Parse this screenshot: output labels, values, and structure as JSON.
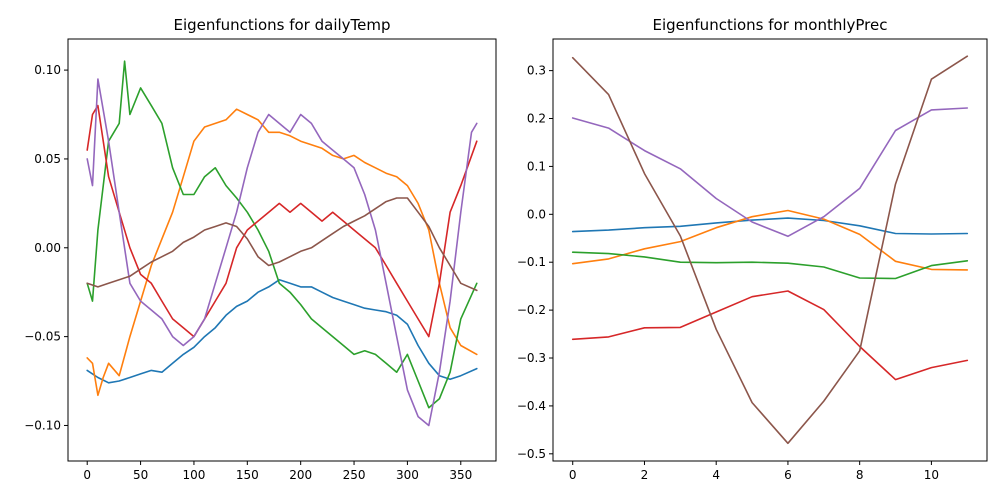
{
  "chart_data": [
    {
      "type": "line",
      "title": "Eigenfunctions for dailyTemp",
      "xlabel": "",
      "ylabel": "",
      "xlim": [
        -18,
        383
      ],
      "ylim": [
        -0.12,
        0.1175
      ],
      "x_ticks": [
        0,
        50,
        100,
        150,
        200,
        250,
        300,
        350
      ],
      "x_tick_labels": [
        "0",
        "50",
        "100",
        "150",
        "200",
        "250",
        "300",
        "350"
      ],
      "y_ticks": [
        -0.1,
        -0.05,
        0.0,
        0.05,
        0.1
      ],
      "y_tick_labels": [
        "−0.10",
        "−0.05",
        "0.00",
        "0.05",
        "0.10"
      ],
      "grid": false,
      "series": [
        {
          "color": "#1f77b4",
          "x": [
            0,
            10,
            20,
            30,
            40,
            50,
            60,
            70,
            80,
            90,
            100,
            110,
            120,
            130,
            140,
            150,
            160,
            170,
            180,
            190,
            200,
            210,
            220,
            230,
            240,
            250,
            260,
            270,
            280,
            290,
            300,
            310,
            320,
            330,
            340,
            350,
            365
          ],
          "y": [
            -0.069,
            -0.073,
            -0.076,
            -0.075,
            -0.073,
            -0.071,
            -0.069,
            -0.07,
            -0.065,
            -0.06,
            -0.056,
            -0.05,
            -0.045,
            -0.038,
            -0.033,
            -0.03,
            -0.025,
            -0.022,
            -0.018,
            -0.02,
            -0.022,
            -0.022,
            -0.025,
            -0.028,
            -0.03,
            -0.032,
            -0.034,
            -0.035,
            -0.036,
            -0.038,
            -0.043,
            -0.055,
            -0.065,
            -0.072,
            -0.074,
            -0.072,
            -0.068
          ]
        },
        {
          "color": "#ff7f0e",
          "x": [
            0,
            5,
            10,
            15,
            20,
            30,
            40,
            50,
            60,
            70,
            80,
            90,
            100,
            110,
            120,
            130,
            140,
            150,
            160,
            170,
            180,
            190,
            200,
            210,
            220,
            230,
            240,
            250,
            260,
            270,
            280,
            290,
            300,
            310,
            320,
            330,
            340,
            350,
            365
          ],
          "y": [
            -0.062,
            -0.065,
            -0.083,
            -0.073,
            -0.065,
            -0.072,
            -0.05,
            -0.03,
            -0.01,
            0.005,
            0.02,
            0.04,
            0.06,
            0.068,
            0.07,
            0.072,
            0.078,
            0.075,
            0.072,
            0.065,
            0.065,
            0.063,
            0.06,
            0.058,
            0.056,
            0.052,
            0.05,
            0.052,
            0.048,
            0.045,
            0.042,
            0.04,
            0.035,
            0.025,
            0.01,
            -0.02,
            -0.045,
            -0.055,
            -0.06
          ]
        },
        {
          "color": "#2ca02c",
          "x": [
            0,
            5,
            10,
            20,
            30,
            35,
            40,
            50,
            60,
            70,
            80,
            90,
            100,
            110,
            120,
            130,
            140,
            150,
            160,
            170,
            180,
            190,
            200,
            210,
            220,
            230,
            240,
            250,
            260,
            270,
            280,
            290,
            300,
            310,
            320,
            330,
            340,
            350,
            365
          ],
          "y": [
            -0.02,
            -0.03,
            0.01,
            0.06,
            0.07,
            0.105,
            0.075,
            0.09,
            0.08,
            0.07,
            0.045,
            0.03,
            0.03,
            0.04,
            0.045,
            0.035,
            0.028,
            0.02,
            0.01,
            -0.002,
            -0.02,
            -0.025,
            -0.032,
            -0.04,
            -0.045,
            -0.05,
            -0.055,
            -0.06,
            -0.058,
            -0.06,
            -0.065,
            -0.07,
            -0.06,
            -0.075,
            -0.09,
            -0.085,
            -0.07,
            -0.04,
            -0.02
          ]
        },
        {
          "color": "#d62728",
          "x": [
            0,
            5,
            10,
            20,
            30,
            40,
            50,
            60,
            70,
            80,
            90,
            100,
            110,
            120,
            130,
            140,
            150,
            160,
            170,
            180,
            190,
            200,
            210,
            220,
            230,
            240,
            250,
            260,
            270,
            280,
            290,
            300,
            310,
            320,
            330,
            340,
            350,
            365
          ],
          "y": [
            0.055,
            0.075,
            0.08,
            0.04,
            0.02,
            0.0,
            -0.015,
            -0.02,
            -0.03,
            -0.04,
            -0.045,
            -0.05,
            -0.04,
            -0.03,
            -0.02,
            0.0,
            0.01,
            0.015,
            0.02,
            0.025,
            0.02,
            0.025,
            0.02,
            0.015,
            0.02,
            0.015,
            0.01,
            0.005,
            0.0,
            -0.01,
            -0.02,
            -0.03,
            -0.04,
            -0.05,
            -0.02,
            0.02,
            0.035,
            0.06
          ]
        },
        {
          "color": "#9467bd",
          "x": [
            0,
            5,
            10,
            20,
            30,
            40,
            50,
            60,
            70,
            80,
            90,
            100,
            110,
            120,
            130,
            140,
            150,
            160,
            170,
            180,
            190,
            200,
            210,
            220,
            230,
            240,
            250,
            260,
            270,
            280,
            290,
            300,
            310,
            320,
            330,
            340,
            350,
            360,
            365
          ],
          "y": [
            0.05,
            0.035,
            0.095,
            0.06,
            0.02,
            -0.02,
            -0.03,
            -0.035,
            -0.04,
            -0.05,
            -0.055,
            -0.05,
            -0.04,
            -0.02,
            0.0,
            0.02,
            0.045,
            0.065,
            0.075,
            0.07,
            0.065,
            0.075,
            0.07,
            0.06,
            0.055,
            0.05,
            0.045,
            0.03,
            0.01,
            -0.02,
            -0.05,
            -0.08,
            -0.095,
            -0.1,
            -0.07,
            -0.03,
            0.02,
            0.065,
            0.07
          ]
        },
        {
          "color": "#8c564b",
          "x": [
            0,
            10,
            20,
            30,
            40,
            50,
            60,
            70,
            80,
            90,
            100,
            110,
            120,
            130,
            140,
            150,
            160,
            170,
            180,
            190,
            200,
            210,
            220,
            230,
            240,
            250,
            260,
            270,
            280,
            290,
            300,
            310,
            320,
            330,
            340,
            350,
            365
          ],
          "y": [
            -0.02,
            -0.022,
            -0.02,
            -0.018,
            -0.016,
            -0.012,
            -0.008,
            -0.005,
            -0.002,
            0.003,
            0.006,
            0.01,
            0.012,
            0.014,
            0.012,
            0.005,
            -0.005,
            -0.01,
            -0.008,
            -0.005,
            -0.002,
            0.0,
            0.004,
            0.008,
            0.012,
            0.015,
            0.018,
            0.022,
            0.026,
            0.028,
            0.028,
            0.02,
            0.012,
            0.0,
            -0.01,
            -0.02,
            -0.024
          ]
        }
      ]
    },
    {
      "type": "line",
      "title": "Eigenfunctions for monthlyPrec",
      "xlabel": "",
      "ylabel": "",
      "xlim": [
        -0.55,
        11.55
      ],
      "ylim": [
        -0.515,
        0.366
      ],
      "x_ticks": [
        0,
        2,
        4,
        6,
        8,
        10
      ],
      "x_tick_labels": [
        "0",
        "2",
        "4",
        "6",
        "8",
        "10"
      ],
      "y_ticks": [
        -0.5,
        -0.4,
        -0.3,
        -0.2,
        -0.1,
        0.0,
        0.1,
        0.2,
        0.3
      ],
      "y_tick_labels": [
        "−0.5",
        "−0.4",
        "−0.3",
        "−0.2",
        "−0.1",
        "0.0",
        "0.1",
        "0.2",
        "0.3"
      ],
      "grid": false,
      "series": [
        {
          "color": "#1f77b4",
          "x": [
            0,
            1,
            2,
            3,
            4,
            5,
            6,
            7,
            8,
            9,
            10,
            11
          ],
          "y": [
            -0.036,
            -0.033,
            -0.028,
            -0.025,
            -0.018,
            -0.012,
            -0.008,
            -0.013,
            -0.024,
            -0.04,
            -0.041,
            -0.04
          ]
        },
        {
          "color": "#ff7f0e",
          "x": [
            0,
            1,
            2,
            3,
            4,
            5,
            6,
            7,
            8,
            9,
            10,
            11
          ],
          "y": [
            -0.103,
            -0.093,
            -0.072,
            -0.057,
            -0.028,
            -0.005,
            0.008,
            -0.01,
            -0.042,
            -0.098,
            -0.115,
            -0.116
          ]
        },
        {
          "color": "#2ca02c",
          "x": [
            0,
            1,
            2,
            3,
            4,
            5,
            6,
            7,
            8,
            9,
            10,
            11
          ],
          "y": [
            -0.079,
            -0.082,
            -0.089,
            -0.1,
            -0.101,
            -0.1,
            -0.102,
            -0.11,
            -0.133,
            -0.134,
            -0.107,
            -0.097
          ]
        },
        {
          "color": "#d62728",
          "x": [
            0,
            1,
            2,
            3,
            4,
            5,
            6,
            7,
            8,
            9,
            10,
            11
          ],
          "y": [
            -0.261,
            -0.256,
            -0.237,
            -0.236,
            -0.204,
            -0.172,
            -0.16,
            -0.199,
            -0.276,
            -0.345,
            -0.32,
            -0.305
          ]
        },
        {
          "color": "#9467bd",
          "x": [
            0,
            1,
            2,
            3,
            4,
            5,
            6,
            7,
            8,
            9,
            10,
            11
          ],
          "y": [
            0.201,
            0.18,
            0.133,
            0.095,
            0.033,
            -0.016,
            -0.046,
            -0.005,
            0.054,
            0.175,
            0.218,
            0.222
          ]
        },
        {
          "color": "#8c564b",
          "x": [
            0,
            1,
            2,
            3,
            4,
            5,
            6,
            7,
            8,
            9,
            10,
            11
          ],
          "y": [
            0.327,
            0.25,
            0.085,
            -0.045,
            -0.24,
            -0.393,
            -0.478,
            -0.39,
            -0.285,
            0.063,
            0.282,
            0.33
          ]
        }
      ]
    }
  ]
}
